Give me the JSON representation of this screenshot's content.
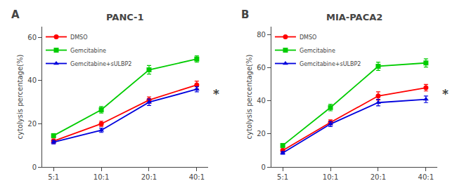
{
  "chart_data": [
    {
      "type": "line",
      "title": "PANC-1",
      "ylabel": "cytolysis percentage(%)",
      "annotations": [
        "A",
        "*"
      ],
      "categories": [
        "5:1",
        "10:1",
        "20:1",
        "40:1"
      ],
      "series": [
        {
          "name": "DMSO",
          "color": "#FF0000",
          "marker": "circle",
          "values": [
            12,
            20,
            31,
            38
          ],
          "errors": [
            1.0,
            1.2,
            1.5,
            1.8
          ]
        },
        {
          "name": "Gemcitabine",
          "color": "#00CC00",
          "marker": "square",
          "values": [
            14.5,
            26.5,
            45,
            50
          ],
          "errors": [
            0.8,
            1.5,
            2.0,
            1.5
          ]
        },
        {
          "name": "Gemcitabine+sULBP2",
          "color": "#0000DD",
          "marker": "triangle",
          "values": [
            11.5,
            17,
            30,
            36
          ],
          "errors": [
            0.8,
            1.0,
            1.5,
            1.2
          ]
        }
      ],
      "ylim": [
        0,
        65
      ],
      "yticks": [
        0,
        20,
        40,
        60
      ],
      "grid": false,
      "legend": "upper left"
    },
    {
      "type": "line",
      "title": "MIA-PACA2",
      "ylabel": "cytolysis percentage(%)",
      "annotations": [
        "B",
        "*"
      ],
      "categories": [
        "5:1",
        "10:1",
        "20:1",
        "40:1"
      ],
      "series": [
        {
          "name": "DMSO",
          "color": "#FF0000",
          "marker": "circle",
          "values": [
            10,
            27,
            43,
            48
          ],
          "errors": [
            1.0,
            1.5,
            2.5,
            2.0
          ]
        },
        {
          "name": "Gemcitabine",
          "color": "#00CC00",
          "marker": "square",
          "values": [
            13,
            36,
            61,
            63
          ],
          "errors": [
            0.8,
            2.0,
            2.5,
            2.5
          ]
        },
        {
          "name": "Gemcitabine+sULBP2",
          "color": "#0000DD",
          "marker": "triangle",
          "values": [
            8.5,
            26,
            39,
            41
          ],
          "errors": [
            0.8,
            1.5,
            2.0,
            2.0
          ]
        }
      ],
      "ylim": [
        0,
        85
      ],
      "yticks": [
        0,
        20,
        40,
        60,
        80
      ],
      "grid": false,
      "legend": "upper left"
    }
  ]
}
